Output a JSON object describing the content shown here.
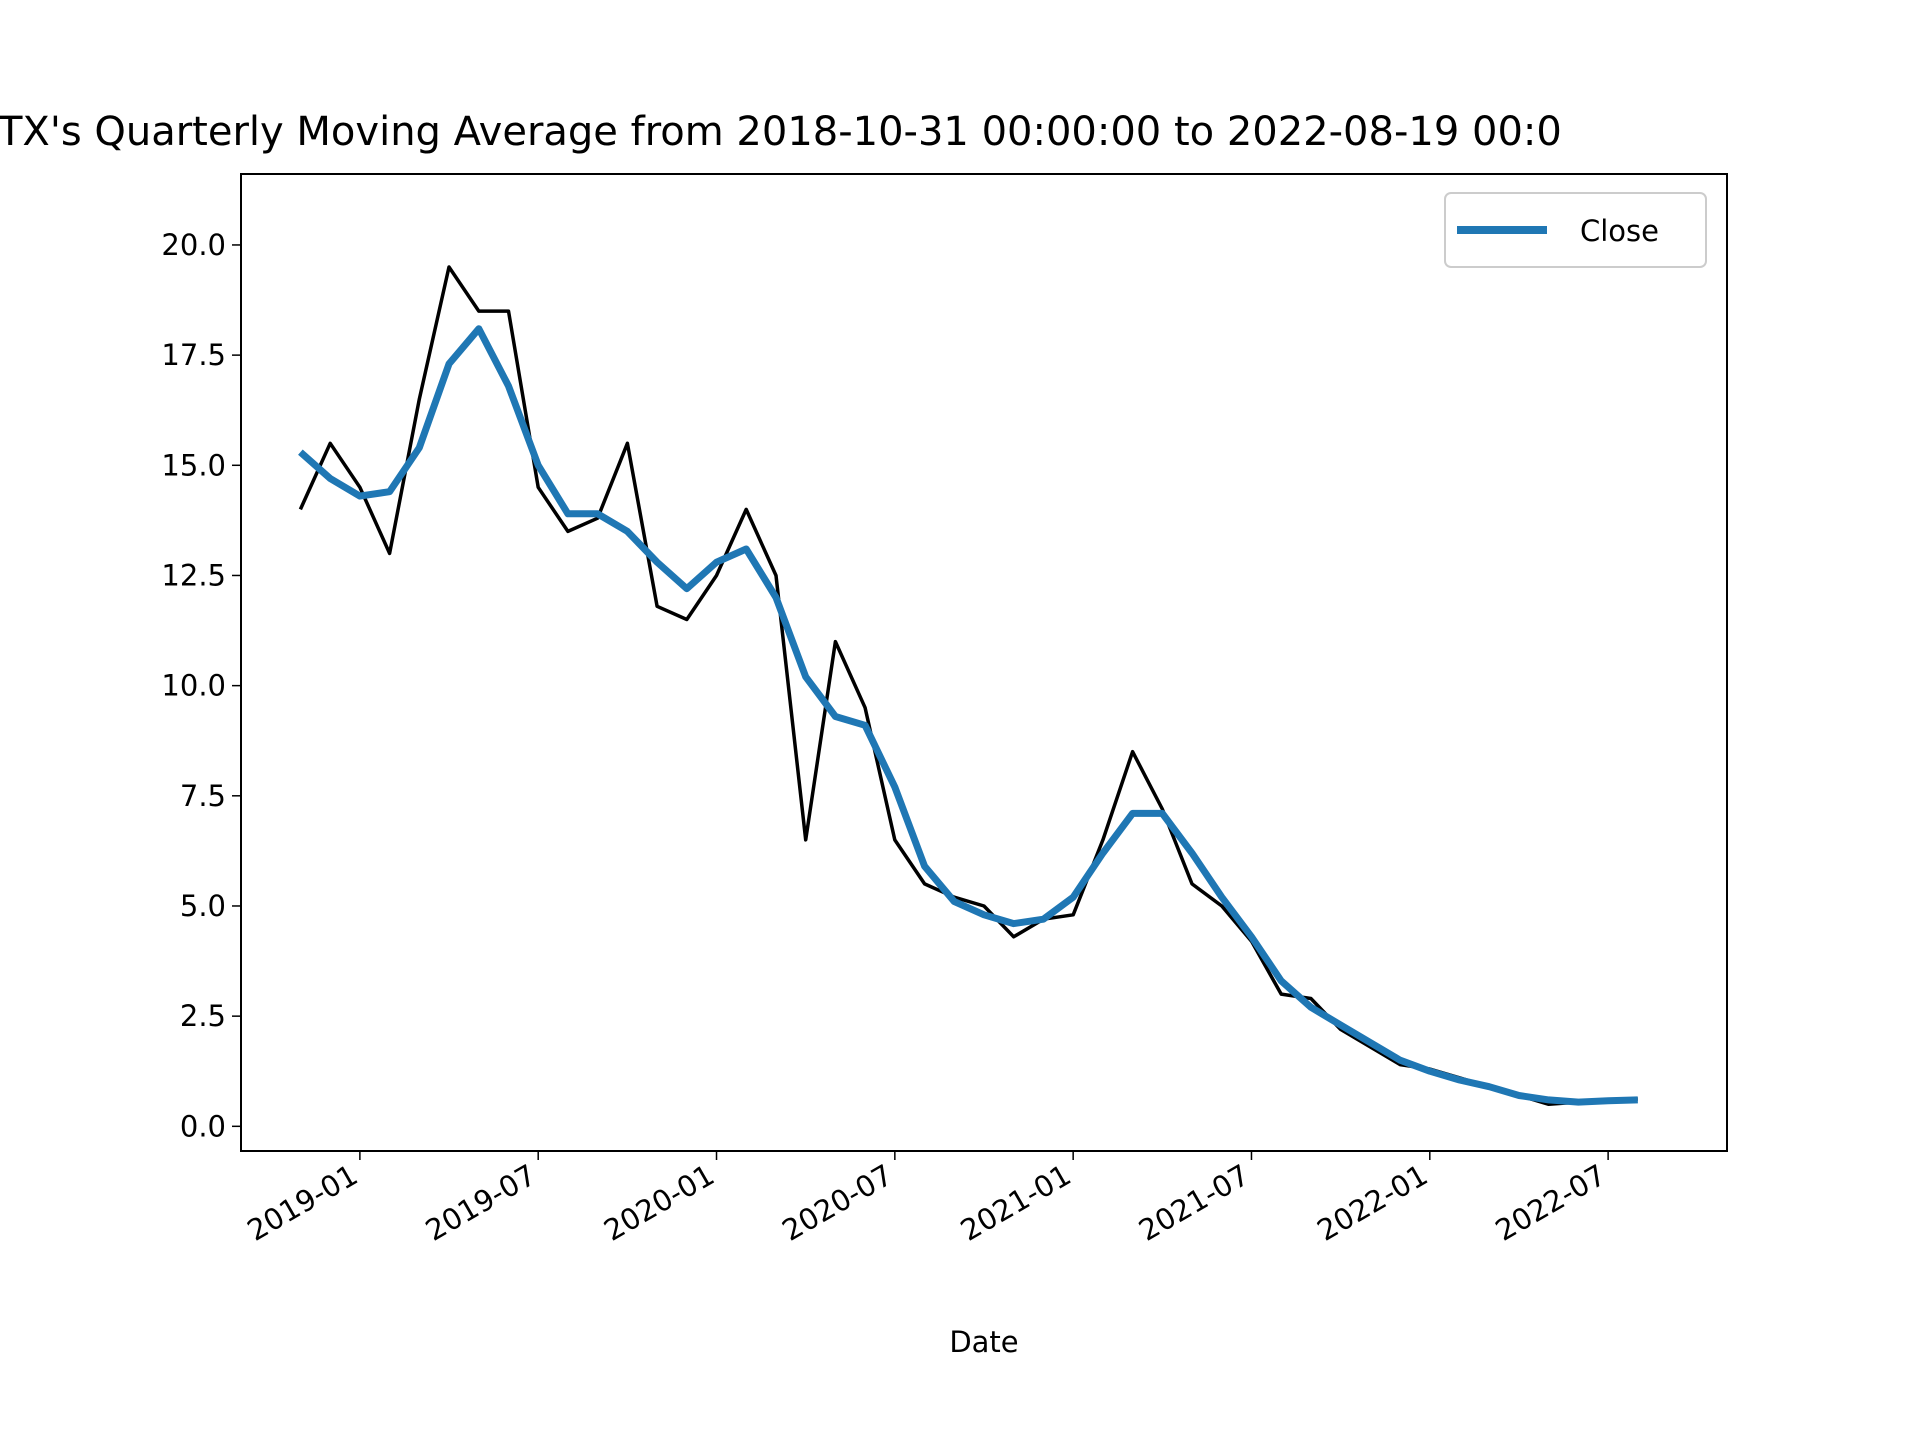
{
  "chart_data": {
    "type": "line",
    "title": "TX's Quarterly Moving Average from 2018-10-31 00:00:00 to 2022-08-19 00:0",
    "x_label": "Date",
    "x": [
      "2018-11",
      "2018-12",
      "2019-01",
      "2019-02",
      "2019-03",
      "2019-04",
      "2019-05",
      "2019-06",
      "2019-07",
      "2019-08",
      "2019-09",
      "2019-10",
      "2019-11",
      "2019-12",
      "2020-01",
      "2020-02",
      "2020-03",
      "2020-04",
      "2020-05",
      "2020-06",
      "2020-07",
      "2020-08",
      "2020-09",
      "2020-10",
      "2020-11",
      "2020-12",
      "2021-01",
      "2021-02",
      "2021-03",
      "2021-04",
      "2021-05",
      "2021-06",
      "2021-07",
      "2021-08",
      "2021-09",
      "2021-10",
      "2021-11",
      "2021-12",
      "2022-01",
      "2022-02",
      "2022-03",
      "2022-04",
      "2022-05",
      "2022-06",
      "2022-07",
      "2022-08"
    ],
    "series": [
      {
        "color": "#000000",
        "values": [
          14.0,
          15.5,
          14.5,
          13.0,
          16.5,
          19.5,
          18.5,
          18.5,
          14.5,
          13.5,
          13.8,
          15.5,
          11.8,
          11.5,
          12.5,
          14.0,
          12.5,
          6.5,
          11.0,
          9.5,
          6.5,
          5.5,
          5.2,
          5.0,
          4.3,
          4.7,
          4.8,
          6.5,
          8.5,
          7.2,
          5.5,
          5.0,
          4.2,
          3.0,
          2.9,
          2.2,
          1.8,
          1.4,
          1.3,
          1.1,
          0.9,
          0.7,
          0.5,
          0.55,
          0.6,
          0.62
        ]
      },
      {
        "name": "Close",
        "color": "#1f77b4",
        "values": [
          15.3,
          14.7,
          14.3,
          14.4,
          15.4,
          17.3,
          18.1,
          16.8,
          15.0,
          13.9,
          13.9,
          13.5,
          12.8,
          12.2,
          12.8,
          13.1,
          12.0,
          10.2,
          9.3,
          9.1,
          7.7,
          5.9,
          5.1,
          4.8,
          4.6,
          4.7,
          5.2,
          6.2,
          7.1,
          7.1,
          6.2,
          5.2,
          4.3,
          3.3,
          2.7,
          2.3,
          1.9,
          1.5,
          1.25,
          1.05,
          0.9,
          0.7,
          0.6,
          0.55,
          0.58,
          0.6
        ]
      }
    ],
    "xlim": [
      "2018-09",
      "2022-11"
    ],
    "xticks": [
      "2019-01",
      "2019-07",
      "2020-01",
      "2020-07",
      "2021-01",
      "2021-07",
      "2022-01",
      "2022-07"
    ],
    "ylim": [
      -0.56,
      21.61
    ],
    "yticks": [
      {
        "value": 0,
        "label": "0.0"
      },
      {
        "value": 2.5,
        "label": "2.5"
      },
      {
        "value": 5,
        "label": "5.0"
      },
      {
        "value": 7.5,
        "label": "7.5"
      },
      {
        "value": 10,
        "label": "10.0"
      },
      {
        "value": 12.5,
        "label": "12.5"
      },
      {
        "value": 15,
        "label": "15.0"
      },
      {
        "value": 17.5,
        "label": "17.5"
      },
      {
        "value": 20,
        "label": "20.0"
      }
    ],
    "legend": "upper right"
  }
}
